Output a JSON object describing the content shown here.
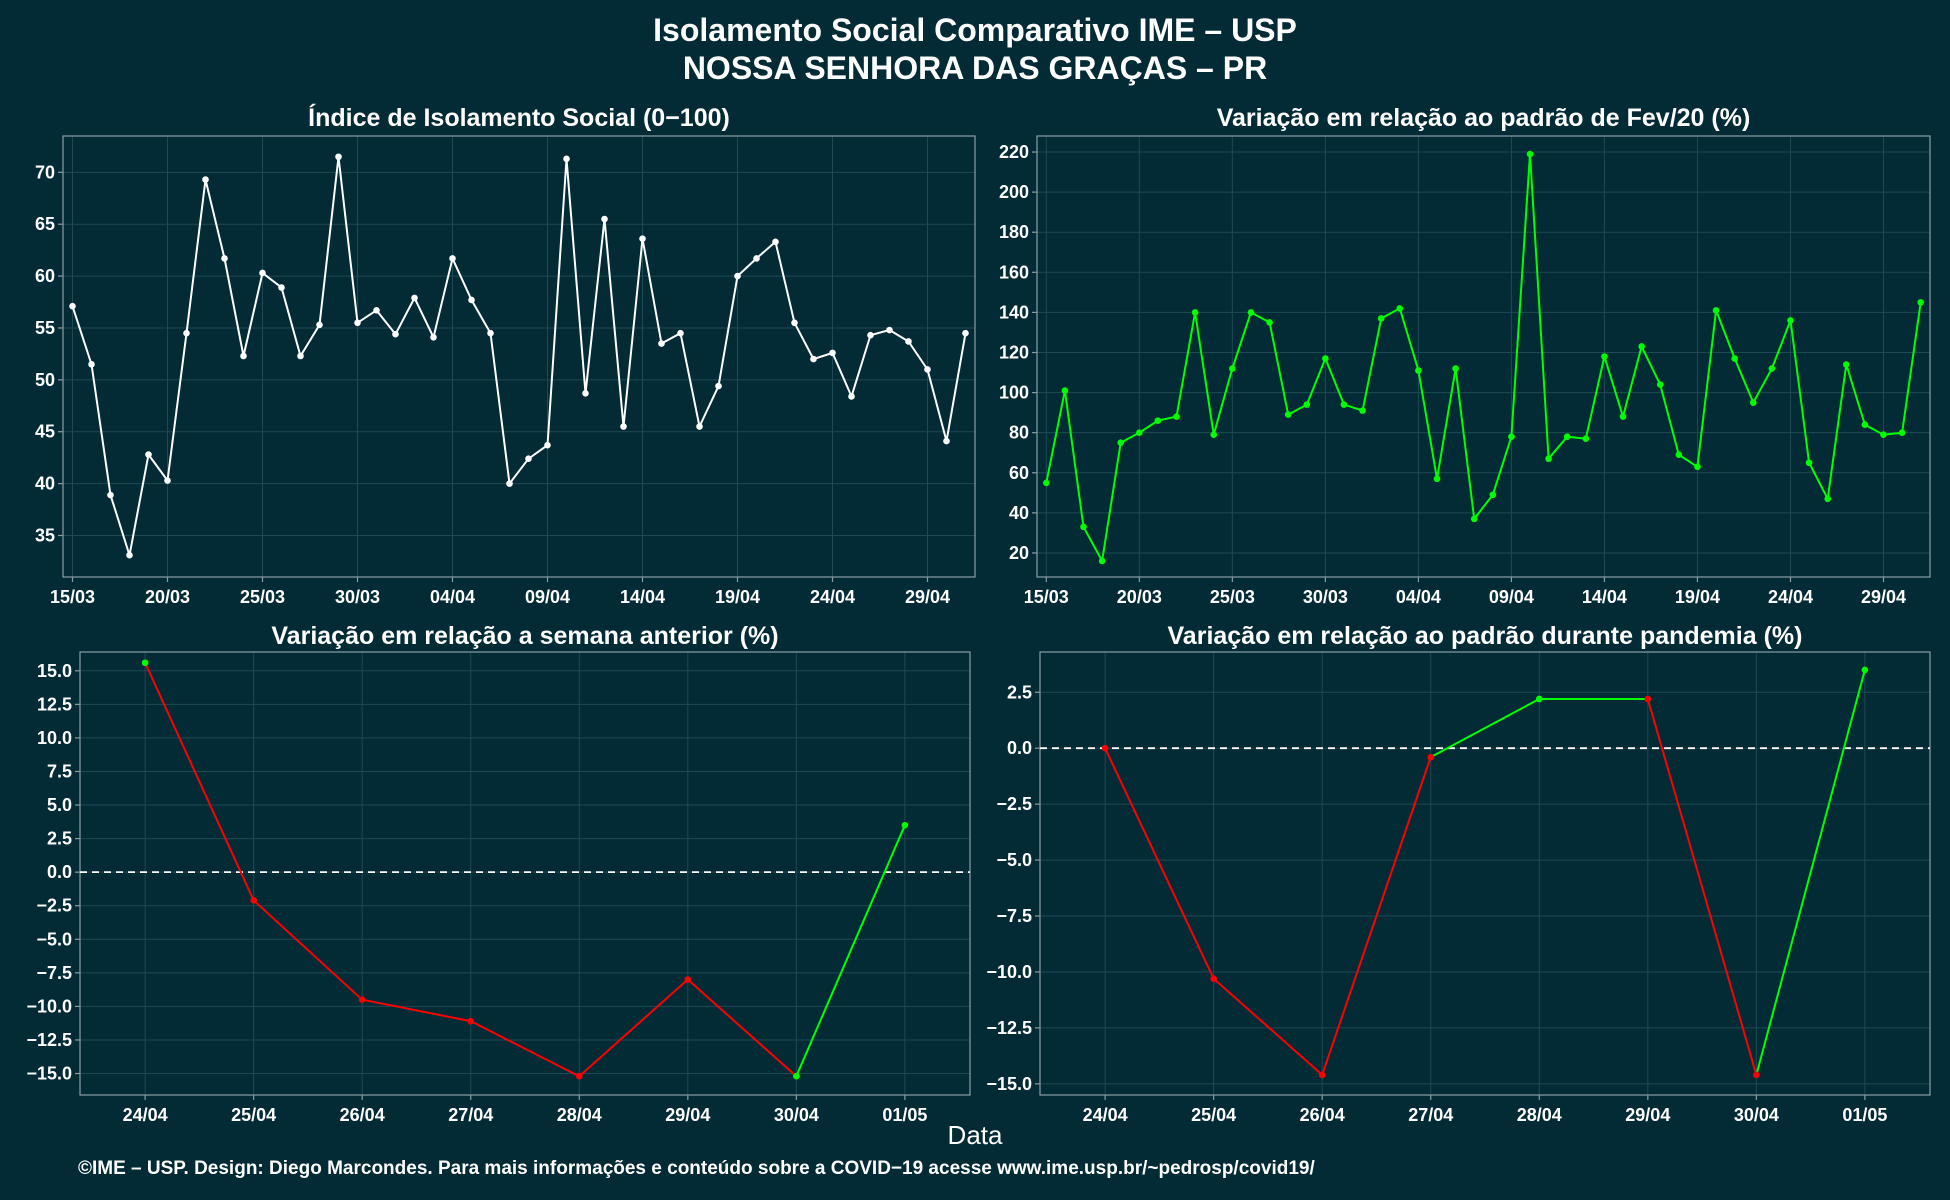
{
  "title_line1": "Isolamento Social Comparativo IME – USP",
  "title_line2": "NOSSA SENHORA DAS GRAÇAS – PR",
  "x_axis_label": "Data",
  "footer": "©IME – USP. Design: Diego Marcondes. Para mais informações e conteúdo sobre a COVID−19 acesse www.ime.usp.br/~pedrosp/covid19/",
  "colors": {
    "background": "#022b35",
    "white": "#ffffff",
    "green": "#00ff00",
    "red": "#ff0000",
    "grid": "#1e4a55",
    "border": "#8a9ea4"
  },
  "chart_data": [
    {
      "type": "line",
      "title": "Índice de Isolamento Social (0−100)",
      "x_range": [
        "2020-03-15",
        "2020-05-01"
      ],
      "ylim": [
        31,
        73.5
      ],
      "y_ticks": [
        35,
        40,
        45,
        50,
        55,
        60,
        65,
        70
      ],
      "x_tick_labels": [
        "15/03",
        "20/03",
        "25/03",
        "30/03",
        "04/04",
        "09/04",
        "14/04",
        "19/04",
        "24/04",
        "29/04"
      ],
      "x_tick_dates": [
        "2020-03-15",
        "2020-03-20",
        "2020-03-25",
        "2020-03-30",
        "2020-04-04",
        "2020-04-09",
        "2020-04-14",
        "2020-04-19",
        "2020-04-24",
        "2020-04-29"
      ],
      "series": [
        {
          "color": "#ffffff",
          "x": [
            "2020-03-15",
            "2020-03-16",
            "2020-03-17",
            "2020-03-18",
            "2020-03-19",
            "2020-03-20",
            "2020-03-21",
            "2020-03-22",
            "2020-03-23",
            "2020-03-24",
            "2020-03-25",
            "2020-03-26",
            "2020-03-27",
            "2020-03-28",
            "2020-03-29",
            "2020-03-30",
            "2020-03-31",
            "2020-04-01",
            "2020-04-02",
            "2020-04-03",
            "2020-04-04",
            "2020-04-05",
            "2020-04-06",
            "2020-04-07",
            "2020-04-08",
            "2020-04-09",
            "2020-04-10",
            "2020-04-11",
            "2020-04-12",
            "2020-04-13",
            "2020-04-14",
            "2020-04-15",
            "2020-04-16",
            "2020-04-17",
            "2020-04-18",
            "2020-04-19",
            "2020-04-20",
            "2020-04-21",
            "2020-04-22",
            "2020-04-23",
            "2020-04-24",
            "2020-04-25",
            "2020-04-26",
            "2020-04-27",
            "2020-04-28",
            "2020-04-29",
            "2020-04-30",
            "2020-05-01"
          ],
          "y": [
            57.1,
            51.5,
            38.9,
            33.1,
            42.8,
            40.3,
            54.5,
            69.3,
            61.7,
            52.3,
            60.3,
            58.9,
            52.3,
            55.3,
            71.5,
            55.5,
            56.7,
            54.4,
            57.9,
            54.1,
            61.7,
            57.7,
            54.5,
            40.0,
            42.4,
            43.7,
            71.3,
            48.7,
            65.5,
            45.5,
            63.6,
            53.5,
            54.5,
            45.5,
            49.4,
            60.0,
            61.7,
            63.3,
            55.5,
            52.0,
            52.6,
            48.4,
            54.3,
            54.8,
            53.7,
            51.0,
            44.1,
            54.5
          ]
        }
      ]
    },
    {
      "type": "line",
      "title": "Variação em relação ao padrão de Fev/20 (%)",
      "x_range": [
        "2020-03-15",
        "2020-05-01"
      ],
      "ylim": [
        8,
        228
      ],
      "y_ticks": [
        20,
        40,
        60,
        80,
        100,
        120,
        140,
        160,
        180,
        200,
        220
      ],
      "x_tick_labels": [
        "15/03",
        "20/03",
        "25/03",
        "30/03",
        "04/04",
        "09/04",
        "14/04",
        "19/04",
        "24/04",
        "29/04"
      ],
      "x_tick_dates": [
        "2020-03-15",
        "2020-03-20",
        "2020-03-25",
        "2020-03-30",
        "2020-04-04",
        "2020-04-09",
        "2020-04-14",
        "2020-04-19",
        "2020-04-24",
        "2020-04-29"
      ],
      "series": [
        {
          "color": "#00ff00",
          "x": [
            "2020-03-15",
            "2020-03-16",
            "2020-03-17",
            "2020-03-18",
            "2020-03-19",
            "2020-03-20",
            "2020-03-21",
            "2020-03-22",
            "2020-03-23",
            "2020-03-24",
            "2020-03-25",
            "2020-03-26",
            "2020-03-27",
            "2020-03-28",
            "2020-03-29",
            "2020-03-30",
            "2020-03-31",
            "2020-04-01",
            "2020-04-02",
            "2020-04-03",
            "2020-04-04",
            "2020-04-05",
            "2020-04-06",
            "2020-04-07",
            "2020-04-08",
            "2020-04-09",
            "2020-04-10",
            "2020-04-11",
            "2020-04-12",
            "2020-04-13",
            "2020-04-14",
            "2020-04-15",
            "2020-04-16",
            "2020-04-17",
            "2020-04-18",
            "2020-04-19",
            "2020-04-20",
            "2020-04-21",
            "2020-04-22",
            "2020-04-23",
            "2020-04-24",
            "2020-04-25",
            "2020-04-26",
            "2020-04-27",
            "2020-04-28",
            "2020-04-29",
            "2020-04-30",
            "2020-05-01"
          ],
          "y": [
            55,
            101,
            33,
            16,
            75,
            80,
            86,
            88,
            140,
            79,
            112,
            140,
            135,
            89,
            94,
            117,
            94,
            91,
            137,
            142,
            111,
            57,
            112,
            37,
            49,
            78,
            219,
            67,
            78,
            77,
            118,
            88,
            123,
            104,
            69,
            63,
            141,
            117,
            95,
            112,
            136,
            65,
            47,
            114,
            84,
            79,
            80,
            145
          ]
        }
      ]
    },
    {
      "type": "line",
      "title": "Variação em relação a semana anterior (%)",
      "categories": [
        "24/04",
        "25/04",
        "26/04",
        "27/04",
        "28/04",
        "29/04",
        "30/04",
        "01/05"
      ],
      "values": [
        15.6,
        -2.1,
        -9.5,
        -11.1,
        -15.2,
        -8.0,
        -15.2,
        3.5
      ],
      "segment_colors": [
        "#ff0000",
        "#ff0000",
        "#ff0000",
        "#ff0000",
        "#ff0000",
        "#ff0000",
        "#00ff00"
      ],
      "point_colors": [
        "#00ff00",
        "#ff0000",
        "#ff0000",
        "#ff0000",
        "#ff0000",
        "#ff0000",
        "#00ff00",
        "#00ff00"
      ],
      "ylim": [
        -16.6,
        16.4
      ],
      "y_ticks": [
        -15.0,
        -12.5,
        -10.0,
        -7.5,
        -5.0,
        -2.5,
        0.0,
        2.5,
        5.0,
        7.5,
        10.0,
        12.5,
        15.0
      ],
      "reference_line": 0
    },
    {
      "type": "line",
      "title": "Variação em relação ao padrão durante pandemia (%)",
      "categories": [
        "24/04",
        "25/04",
        "26/04",
        "27/04",
        "28/04",
        "29/04",
        "30/04",
        "01/05"
      ],
      "values": [
        0.0,
        -10.3,
        -14.6,
        -0.4,
        2.2,
        2.2,
        -14.6,
        3.5
      ],
      "segment_colors": [
        "#ff0000",
        "#ff0000",
        "#ff0000",
        "#00ff00",
        "#00ff00",
        "#ff0000",
        "#00ff00"
      ],
      "point_colors": [
        "#ff0000",
        "#ff0000",
        "#ff0000",
        "#ff0000",
        "#00ff00",
        "#ff0000",
        "#ff0000",
        "#00ff00"
      ],
      "ylim": [
        -15.5,
        4.3
      ],
      "y_ticks": [
        -15.0,
        -12.5,
        -10.0,
        -7.5,
        -5.0,
        -2.5,
        0.0,
        2.5
      ],
      "reference_line": 0
    }
  ]
}
